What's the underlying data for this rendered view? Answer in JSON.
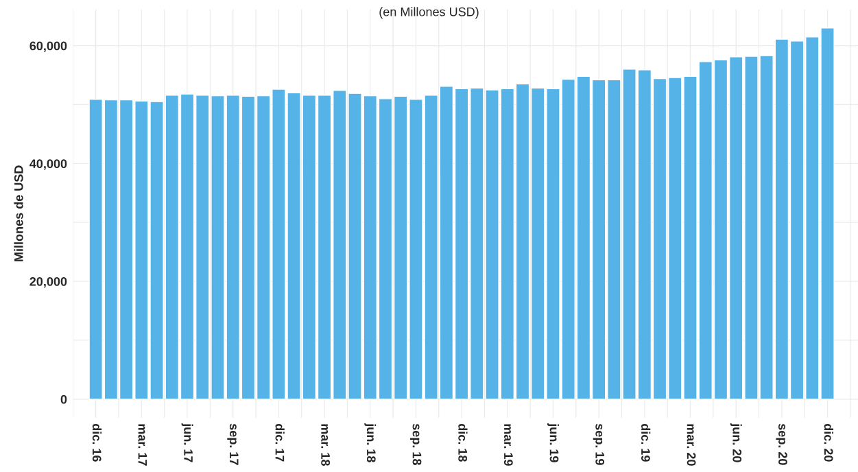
{
  "chart_data": {
    "type": "bar",
    "subtitle": "(en Millones USD)",
    "ylabel": "Millones de USD",
    "categories": [
      "dic. 16",
      null,
      null,
      "mar. 17",
      null,
      null,
      "jun. 17",
      null,
      null,
      "sep. 17",
      null,
      null,
      "dic. 17",
      null,
      null,
      "mar. 18",
      null,
      null,
      "jun. 18",
      null,
      null,
      "sep. 18",
      null,
      null,
      "dic. 18",
      null,
      null,
      "mar. 19",
      null,
      null,
      "jun. 19",
      null,
      null,
      "sep. 19",
      null,
      null,
      "dic. 19",
      null,
      null,
      "mar. 20",
      null,
      null,
      "jun. 20",
      null,
      null,
      "sep. 20",
      null,
      null,
      "dic. 20"
    ],
    "values": [
      50900,
      50800,
      50800,
      50600,
      50500,
      51600,
      51800,
      51600,
      51500,
      51600,
      51400,
      51500,
      52600,
      52000,
      51600,
      51600,
      52400,
      51900,
      51500,
      51000,
      51400,
      50900,
      51600,
      53100,
      52700,
      52800,
      52500,
      52700,
      53500,
      52800,
      52700,
      54300,
      54800,
      54200,
      54200,
      56000,
      55900,
      54400,
      54600,
      54800,
      57300,
      57600,
      58100,
      58200,
      58300,
      61100,
      60800,
      61500,
      63000
    ],
    "color": "#56b3e8",
    "ylim": [
      -3150,
      66150
    ],
    "yticks": [
      {
        "value": 0,
        "label": "0"
      },
      {
        "value": 20000,
        "label": "20,000"
      },
      {
        "value": 40000,
        "label": "40,000"
      },
      {
        "value": 60000,
        "label": "60,000"
      }
    ],
    "grid": true,
    "legend": false
  }
}
